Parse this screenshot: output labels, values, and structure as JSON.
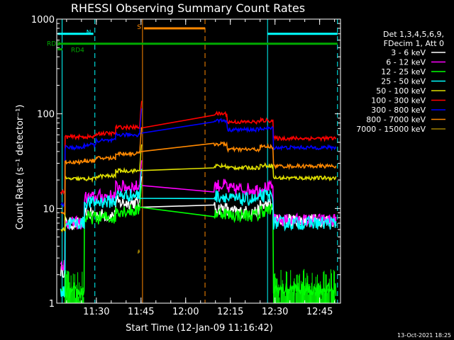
{
  "chart_data": {
    "type": "line",
    "title": "RHESSI Observing Summary Count Rates",
    "xlabel": "Start Time (12-Jan-09 11:16:42)",
    "ylabel": "Count Rate (s⁻¹ detector⁻¹)",
    "ylim": [
      1,
      1000
    ],
    "yscale": "log",
    "xlim_minutes": [
      76.7,
      172.0
    ],
    "x_ticks": [
      {
        "label": "11:30",
        "x": 90
      },
      {
        "label": "11:45",
        "x": 105
      },
      {
        "label": "12:00",
        "x": 120
      },
      {
        "label": "12:15",
        "x": 135
      },
      {
        "label": "12:30",
        "x": 150
      },
      {
        "label": "12:45",
        "x": 165
      }
    ],
    "y_ticks": [
      {
        "label": "1",
        "y": 1
      },
      {
        "label": "10",
        "y": 10
      },
      {
        "label": "100",
        "y": 100
      },
      {
        "label": "1000",
        "y": 1000
      }
    ],
    "legend": {
      "header": [
        "Det 1,3,4,5,6,9,",
        "FDecim 1, Att 0"
      ],
      "placement": "right"
    },
    "series": [
      {
        "name": "3 - 6 keV",
        "color": "#ffffff",
        "segments": [
          {
            "x0": 78,
            "x1": 79.5,
            "y": 2.2
          },
          {
            "x0": 79.5,
            "x1": 86,
            "y": 6.9
          },
          {
            "x0": 86,
            "x1": 90,
            "y": 8.8
          },
          {
            "x0": 90,
            "x1": 96.5,
            "y": 8.5
          },
          {
            "x0": 96.5,
            "x1": 104.5,
            "y": 11.5
          },
          {
            "x0": 129.5,
            "x1": 134,
            "y": 10.0
          },
          {
            "x0": 134,
            "x1": 145,
            "y": 9.2
          },
          {
            "x0": 145,
            "x1": 149.5,
            "y": 10.8
          },
          {
            "x0": 149.5,
            "x1": 170.5,
            "y": 7.5
          }
        ]
      },
      {
        "name": "6 - 12 keV",
        "color": "#ff00ff",
        "segments": [
          {
            "x0": 78,
            "x1": 79.5,
            "y": 2.6
          },
          {
            "x0": 79.5,
            "x1": 86,
            "y": 7.0
          },
          {
            "x0": 86,
            "x1": 90,
            "y": 13.0
          },
          {
            "x0": 90,
            "x1": 96.5,
            "y": 13.5
          },
          {
            "x0": 96.5,
            "x1": 104.5,
            "y": 17.0
          },
          {
            "x0": 129.5,
            "x1": 134,
            "y": 17.5
          },
          {
            "x0": 134,
            "x1": 145,
            "y": 16.0
          },
          {
            "x0": 145,
            "x1": 149.5,
            "y": 16.5
          },
          {
            "x0": 149.5,
            "x1": 170.5,
            "y": 7.5
          }
        ]
      },
      {
        "name": "12 - 25 keV",
        "color": "#00ff00",
        "segments": [
          {
            "x0": 78,
            "x1": 86,
            "y": 1.3
          },
          {
            "x0": 86,
            "x1": 90,
            "y": 8.0
          },
          {
            "x0": 90,
            "x1": 96.5,
            "y": 8.0
          },
          {
            "x0": 96.5,
            "x1": 104.5,
            "y": 9.5
          },
          {
            "x0": 129.5,
            "x1": 134,
            "y": 9.0
          },
          {
            "x0": 134,
            "x1": 145,
            "y": 8.5
          },
          {
            "x0": 145,
            "x1": 149.5,
            "y": 9.5
          },
          {
            "x0": 149.5,
            "x1": 170.5,
            "y": 1.4
          }
        ]
      },
      {
        "name": "25 - 50 keV",
        "color": "#00ffff",
        "segments": [
          {
            "x0": 78,
            "x1": 79.5,
            "y": 1.3
          },
          {
            "x0": 79.5,
            "x1": 86,
            "y": 7.0
          },
          {
            "x0": 86,
            "x1": 90,
            "y": 11.5
          },
          {
            "x0": 90,
            "x1": 96.5,
            "y": 11.8
          },
          {
            "x0": 96.5,
            "x1": 104.5,
            "y": 13.8
          },
          {
            "x0": 129.5,
            "x1": 134,
            "y": 13.5
          },
          {
            "x0": 134,
            "x1": 145,
            "y": 12.5
          },
          {
            "x0": 145,
            "x1": 149.5,
            "y": 13.5
          },
          {
            "x0": 149.5,
            "x1": 170.5,
            "y": 7.0
          }
        ]
      },
      {
        "name": "50 - 100 keV",
        "color": "#e0e000",
        "segments": [
          {
            "x0": 78,
            "x1": 79.5,
            "y": 6.0
          },
          {
            "x0": 79.5,
            "x1": 86,
            "y": 20.5
          },
          {
            "x0": 86,
            "x1": 90,
            "y": 20.5
          },
          {
            "x0": 90,
            "x1": 96.5,
            "y": 22.0
          },
          {
            "x0": 96.5,
            "x1": 104.5,
            "y": 25.0
          },
          {
            "x0": 129.5,
            "x1": 134,
            "y": 28.0
          },
          {
            "x0": 134,
            "x1": 145,
            "y": 27.0
          },
          {
            "x0": 145,
            "x1": 149.5,
            "y": 28.5
          },
          {
            "x0": 149.5,
            "x1": 170.5,
            "y": 21.0
          }
        ]
      },
      {
        "name": "100 - 300 keV",
        "color": "#ff0000",
        "segments": [
          {
            "x0": 78,
            "x1": 79.5,
            "y": 15.0
          },
          {
            "x0": 79.5,
            "x1": 86,
            "y": 57.0
          },
          {
            "x0": 86,
            "x1": 90,
            "y": 57.0
          },
          {
            "x0": 90,
            "x1": 96.5,
            "y": 62.0
          },
          {
            "x0": 96.5,
            "x1": 104.5,
            "y": 72.0
          },
          {
            "x0": 129.5,
            "x1": 134,
            "y": 100.0
          },
          {
            "x0": 134,
            "x1": 145,
            "y": 82.0
          },
          {
            "x0": 145,
            "x1": 149.5,
            "y": 85.0
          },
          {
            "x0": 149.5,
            "x1": 170.5,
            "y": 55.0
          }
        ]
      },
      {
        "name": "300 - 800 keV",
        "color": "#0000ff",
        "segments": [
          {
            "x0": 78,
            "x1": 79.5,
            "y": 11.0
          },
          {
            "x0": 79.5,
            "x1": 86,
            "y": 44.0
          },
          {
            "x0": 86,
            "x1": 90,
            "y": 47.0
          },
          {
            "x0": 90,
            "x1": 96.5,
            "y": 52.0
          },
          {
            "x0": 96.5,
            "x1": 104.5,
            "y": 60.0
          },
          {
            "x0": 129.5,
            "x1": 134,
            "y": 85.0
          },
          {
            "x0": 134,
            "x1": 145,
            "y": 68.0
          },
          {
            "x0": 145,
            "x1": 149.5,
            "y": 70.0
          },
          {
            "x0": 149.5,
            "x1": 170.5,
            "y": 44.0
          }
        ]
      },
      {
        "name": "800 - 7000 keV",
        "color": "#ff8800",
        "segments": [
          {
            "x0": 78,
            "x1": 79.5,
            "y": 9.0
          },
          {
            "x0": 79.5,
            "x1": 86,
            "y": 31.0
          },
          {
            "x0": 86,
            "x1": 90,
            "y": 32.0
          },
          {
            "x0": 90,
            "x1": 96.5,
            "y": 34.0
          },
          {
            "x0": 96.5,
            "x1": 104.5,
            "y": 38.0
          },
          {
            "x0": 129.5,
            "x1": 134,
            "y": 48.0
          },
          {
            "x0": 134,
            "x1": 145,
            "y": 42.0
          },
          {
            "x0": 145,
            "x1": 149.5,
            "y": 45.0
          },
          {
            "x0": 149.5,
            "x1": 170.5,
            "y": 28.0
          }
        ]
      },
      {
        "name": "7000 - 15000 keV",
        "color": "#a08000",
        "segments": [
          {
            "x0": 104,
            "x1": 104.6,
            "y": 3.5
          }
        ]
      }
    ],
    "flag_bars": [
      {
        "label": "N",
        "color": "#00ffff",
        "x0": 77,
        "x1": 89,
        "y": 700
      },
      {
        "label": "N",
        "color": "#00ffff",
        "x0": 147.5,
        "x1": 171,
        "y": 700
      },
      {
        "label": "S",
        "color": "#ff8800",
        "x0": 106,
        "x1": 126.5,
        "y": 800
      },
      {
        "label": "RD0",
        "color": "#00aa00",
        "x0": 77,
        "x1": 171,
        "y": 550
      },
      {
        "label": "RD4",
        "color": "#00aa00",
        "x0": 77,
        "x1": 78.6,
        "y": 480
      }
    ],
    "vertical_lines": [
      {
        "x": 78.5,
        "color": "#00ffff",
        "style": "solid"
      },
      {
        "x": 89.5,
        "color": "#00ffff",
        "style": "dashed"
      },
      {
        "x": 105.5,
        "color": "#ff8800",
        "style": "solid"
      },
      {
        "x": 126.5,
        "color": "#ff8800",
        "style": "dashed"
      },
      {
        "x": 147.5,
        "color": "#00ffff",
        "style": "solid"
      },
      {
        "x": 171,
        "color": "#00ffff",
        "style": "dashed"
      }
    ],
    "footer": "13-Oct-2021 18:25"
  }
}
